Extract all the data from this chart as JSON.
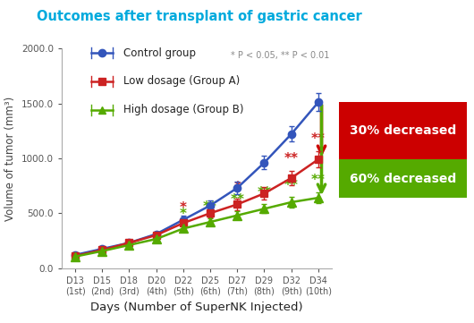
{
  "title": "Outcomes after transplant of gastric cancer",
  "title_color": "#00aadd",
  "xlabel": "Days (Number of SuperNK Injected)",
  "ylabel": "Volume of tumor (mm³)",
  "x_labels": [
    "D13\n(1st)",
    "D15\n(2nd)",
    "D18\n(3rd)",
    "D20\n(4th)",
    "D22\n(5th)",
    "D25\n(6th)",
    "D27\n(7th)",
    "D29\n(8th)",
    "D32\n(9th)",
    "D34\n(10th)"
  ],
  "x_positions": [
    0,
    1,
    2,
    3,
    4,
    5,
    6,
    7,
    8,
    9
  ],
  "control": [
    120,
    175,
    230,
    310,
    440,
    570,
    730,
    960,
    1220,
    1510
  ],
  "control_err": [
    10,
    15,
    20,
    25,
    35,
    45,
    55,
    60,
    70,
    80
  ],
  "low_dosage": [
    110,
    165,
    230,
    300,
    410,
    500,
    580,
    680,
    820,
    990
  ],
  "low_dosage_err": [
    12,
    14,
    18,
    22,
    30,
    40,
    50,
    55,
    65,
    75
  ],
  "high_dosage": [
    105,
    155,
    210,
    265,
    360,
    420,
    480,
    540,
    600,
    640
  ],
  "high_dosage_err": [
    10,
    12,
    15,
    18,
    25,
    30,
    35,
    40,
    45,
    50
  ],
  "control_color": "#3355bb",
  "low_color": "#cc2222",
  "high_color": "#55aa00",
  "ylim": [
    0,
    2000
  ],
  "yticks": [
    0.0,
    500.0,
    1000.0,
    1500.0,
    2000.0
  ],
  "stat_note": "* P < 0.05, ** P < 0.01",
  "red_single_idx": [
    4,
    6
  ],
  "red_double_idx": [
    8,
    9
  ],
  "green_single_idx": [
    4
  ],
  "green_double_idx": [
    5,
    6,
    7,
    8,
    9
  ],
  "box30_text": "30% decreased",
  "box60_text": "60% decreased",
  "box30_color": "#cc0000",
  "box60_color": "#55aa00",
  "arrow30_color": "#cc0000",
  "arrow60_color": "#55aa00"
}
